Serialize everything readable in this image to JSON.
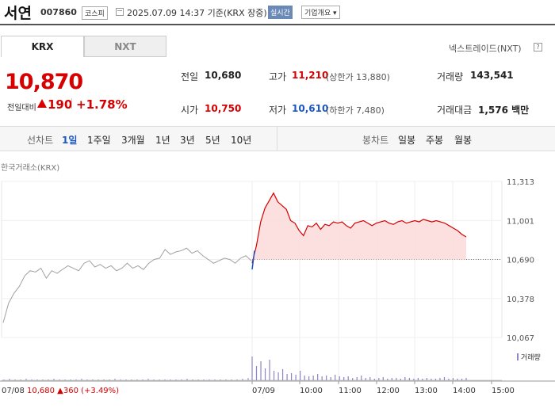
{
  "header": {
    "name": "서연",
    "code": "007860",
    "market": "코스피",
    "time": "2025.07.09 14:37 기준(KRX 장중)",
    "realtime": "실시간",
    "company_info": "기업개요 ▾"
  },
  "tabs": {
    "krx": "KRX",
    "nxt": "NXT"
  },
  "nextrade": "넥스트레이드(NXT)",
  "help": "?",
  "price": {
    "current": "10,870",
    "change_label": "전일대비",
    "change_amount": "190",
    "change_rate": "+1.78%"
  },
  "stats": {
    "prev_label": "전일",
    "prev": "10,680",
    "high_label": "고가",
    "high": "11,210",
    "upper_limit": "(상한가 13,880)",
    "volume_label": "거래량",
    "volume": "143,541",
    "open_label": "시가",
    "open": "10,750",
    "low_label": "저가",
    "low": "10,610",
    "lower_limit": "(하한가 7,480)",
    "amount_label": "거래대금",
    "amount": "1,576 백만"
  },
  "chart_bar": {
    "line_label": "선차트",
    "periods": [
      "1일",
      "1주일",
      "3개월",
      "1년",
      "3년",
      "5년",
      "10년"
    ],
    "candle_label": "봉차트",
    "candles": [
      "일봉",
      "주봉",
      "월봉"
    ]
  },
  "chart_source": "한국거래소(KRX)",
  "volume_legend": "거래량",
  "bottom_prev": "07/08  10,680  ▲360 (+3.49%)",
  "colors": {
    "up": "#d60000",
    "down": "#1b57c2",
    "prev_line": "#a0a0a0",
    "volume": "#8f84c4"
  },
  "chart_data": {
    "type": "line",
    "ylim": [
      10067,
      11313
    ],
    "y_ticks": [
      "11,313",
      "11,001",
      "10,690",
      "10,378",
      "10,067"
    ],
    "y_tick_values": [
      11313,
      11001,
      10690,
      10378,
      10067
    ],
    "reference": 10690,
    "x_labels": [
      "07/08",
      "07/09",
      "10:00",
      "11:00",
      "12:00",
      "13:00",
      "14:00",
      "15:00"
    ],
    "prev_day": [
      10185,
      10340,
      10420,
      10475,
      10560,
      10600,
      10590,
      10620,
      10540,
      10600,
      10580,
      10610,
      10640,
      10620,
      10600,
      10660,
      10680,
      10630,
      10650,
      10620,
      10640,
      10600,
      10620,
      10660,
      10620,
      10640,
      10610,
      10660,
      10690,
      10700,
      10770,
      10730,
      10750,
      10760,
      10780,
      10740,
      10760,
      10720,
      10690,
      10660,
      10680,
      10700,
      10690,
      10660,
      10700,
      10720,
      10680
    ],
    "today": [
      10660,
      10800,
      10990,
      11100,
      11160,
      11220,
      11150,
      11120,
      11090,
      11000,
      10980,
      10920,
      10880,
      10960,
      10950,
      10980,
      10930,
      10970,
      10960,
      10990,
      10980,
      10990,
      10960,
      10940,
      10980,
      10990,
      11000,
      10980,
      10960,
      10980,
      10990,
      11000,
      10980,
      10970,
      10990,
      11000,
      10980,
      10990,
      11000,
      10990,
      11010,
      11000,
      10990,
      11000,
      10990,
      10980,
      10960,
      10940,
      10920,
      10890,
      10870
    ],
    "volume_prev": [
      1,
      2,
      1,
      1,
      2,
      1,
      1,
      1,
      1,
      2,
      1,
      1,
      1,
      1,
      2,
      1,
      1,
      1,
      1,
      1,
      2,
      1,
      1,
      1,
      1,
      1,
      2,
      1,
      1,
      1,
      1,
      1,
      1,
      2,
      1,
      1,
      1,
      1,
      1,
      1,
      1,
      1,
      1,
      2,
      3
    ],
    "volume_today": [
      30,
      18,
      24,
      15,
      26,
      12,
      10,
      14,
      8,
      9,
      7,
      12,
      6,
      5,
      6,
      8,
      5,
      6,
      4,
      7,
      5,
      4,
      5,
      3,
      4,
      6,
      3,
      4,
      2,
      3,
      4,
      2,
      3,
      3,
      2,
      4,
      3,
      2,
      3,
      2,
      3,
      2,
      2,
      3,
      4,
      2,
      3,
      2,
      2,
      3
    ]
  }
}
